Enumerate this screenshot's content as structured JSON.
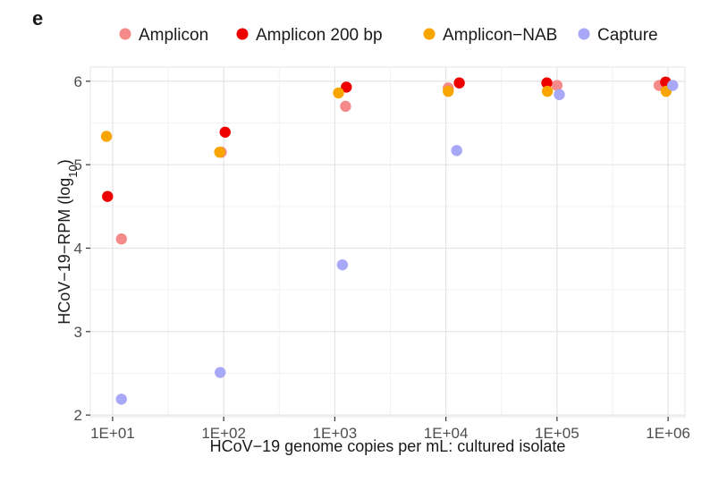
{
  "panel_label": "e",
  "chart_data": {
    "type": "scatter",
    "title": "",
    "xlabel": "HCoV−19 genome copies per mL: cultured isolate",
    "ylabel": "HCoV−19−RPM (log",
    "ylabel_subscript": "10",
    "ylabel_suffix": ")",
    "x_scale": "log10",
    "xlim": [
      6.3,
      1420000
    ],
    "ylim": [
      1.98,
      6.17
    ],
    "x_ticks": [
      10,
      100,
      1000,
      10000,
      100000,
      1000000
    ],
    "x_tick_labels": [
      "1E+01",
      "1E+02",
      "1E+03",
      "1E+04",
      "1E+05",
      "1E+06"
    ],
    "y_ticks": [
      2,
      3,
      4,
      5,
      6
    ],
    "y_tick_labels": [
      "2",
      "3",
      "4",
      "5",
      "6"
    ],
    "grid": true,
    "legend_position": "top",
    "series": [
      {
        "name": "Amplicon",
        "color": "#f48a8a",
        "points": [
          {
            "x": 12,
            "y": 4.11
          },
          {
            "x": 95,
            "y": 5.15
          },
          {
            "x": 1250,
            "y": 5.7
          },
          {
            "x": 10500,
            "y": 5.92
          },
          {
            "x": 100000,
            "y": 5.95
          },
          {
            "x": 830000,
            "y": 5.95
          }
        ]
      },
      {
        "name": "Amplicon 200 bp",
        "color": "#ee0000",
        "points": [
          {
            "x": 9,
            "y": 4.62
          },
          {
            "x": 103,
            "y": 5.39
          },
          {
            "x": 1270,
            "y": 5.93
          },
          {
            "x": 13200,
            "y": 5.98
          },
          {
            "x": 81000,
            "y": 5.98
          },
          {
            "x": 950000,
            "y": 5.99
          }
        ]
      },
      {
        "name": "Amplicon−NAB",
        "color": "#f8a500",
        "points": [
          {
            "x": 8.8,
            "y": 5.34
          },
          {
            "x": 92,
            "y": 5.15
          },
          {
            "x": 1080,
            "y": 5.86
          },
          {
            "x": 10500,
            "y": 5.88
          },
          {
            "x": 82000,
            "y": 5.88
          },
          {
            "x": 960000,
            "y": 5.88
          }
        ]
      },
      {
        "name": "Capture",
        "color": "#a8a8f8",
        "points": [
          {
            "x": 12,
            "y": 2.19
          },
          {
            "x": 93,
            "y": 2.51
          },
          {
            "x": 1170,
            "y": 3.8
          },
          {
            "x": 12500,
            "y": 5.17
          },
          {
            "x": 105000,
            "y": 5.84
          },
          {
            "x": 1100000,
            "y": 5.95
          }
        ]
      }
    ]
  }
}
